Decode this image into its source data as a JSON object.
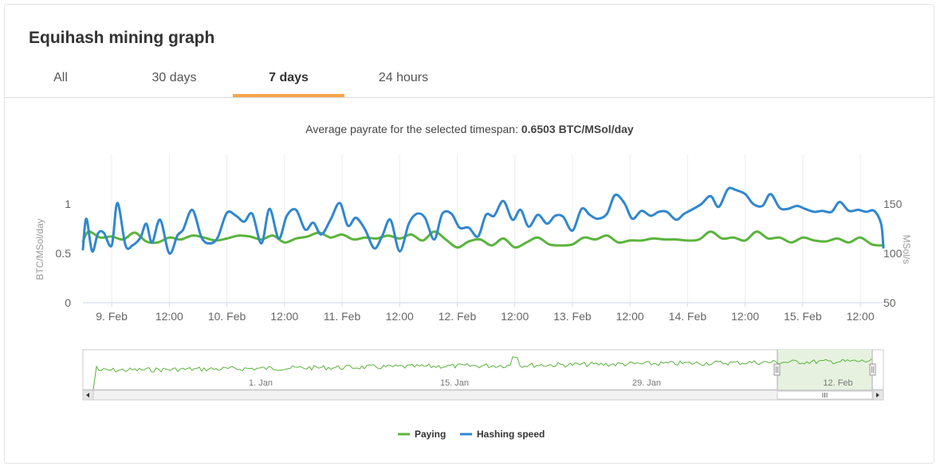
{
  "card": {
    "title": "Equihash mining graph",
    "tabs": [
      {
        "label": "All",
        "active": false
      },
      {
        "label": "30 days",
        "active": false
      },
      {
        "label": "7 days",
        "active": true
      },
      {
        "label": "24 hours",
        "active": false
      }
    ]
  },
  "chart_data": {
    "type": "line",
    "subtitle_prefix": "Average payrate for the selected timespan: ",
    "subtitle_value": "0.6503 BTC/MSol/day",
    "title": "",
    "x_tick_labels": [
      "9. Feb",
      "12:00",
      "10. Feb",
      "12:00",
      "11. Feb",
      "12:00",
      "12. Feb",
      "12:00",
      "13. Feb",
      "12:00",
      "14. Feb",
      "12:00",
      "15. Feb",
      "12:00"
    ],
    "x_range_days": [
      8.75,
      15.7
    ],
    "y_left": {
      "label": "BTC/MSol/day",
      "ticks": [
        "0",
        "0.5",
        "1"
      ],
      "range": [
        0,
        1.5
      ]
    },
    "y_right": {
      "label": "MSol/s",
      "ticks": [
        "50",
        "100",
        "150"
      ],
      "range": [
        50,
        200
      ]
    },
    "grid": true,
    "legend_position": "bottom-center",
    "series": [
      {
        "name": "Paying",
        "color": "#5ab43c",
        "axis": "left",
        "x_days": [
          8.75,
          8.8,
          8.9,
          9.0,
          9.1,
          9.2,
          9.3,
          9.4,
          9.5,
          9.6,
          9.7,
          9.8,
          9.9,
          10.0,
          10.1,
          10.2,
          10.3,
          10.4,
          10.5,
          10.6,
          10.7,
          10.8,
          10.9,
          11.0,
          11.1,
          11.2,
          11.3,
          11.4,
          11.5,
          11.6,
          11.7,
          11.8,
          11.9,
          12.0,
          12.1,
          12.2,
          12.3,
          12.4,
          12.5,
          12.6,
          12.7,
          12.8,
          12.9,
          13.0,
          13.1,
          13.2,
          13.3,
          13.4,
          13.5,
          13.6,
          13.7,
          13.8,
          13.9,
          14.0,
          14.1,
          14.2,
          14.3,
          14.4,
          14.5,
          14.6,
          14.7,
          14.8,
          14.9,
          15.0,
          15.1,
          15.2,
          15.3,
          15.4,
          15.5,
          15.6,
          15.7
        ],
        "y": [
          0.62,
          0.72,
          0.66,
          0.67,
          0.64,
          0.71,
          0.62,
          0.61,
          0.66,
          0.64,
          0.68,
          0.66,
          0.63,
          0.65,
          0.68,
          0.67,
          0.64,
          0.68,
          0.61,
          0.65,
          0.67,
          0.71,
          0.66,
          0.69,
          0.64,
          0.66,
          0.65,
          0.68,
          0.65,
          0.69,
          0.63,
          0.72,
          0.64,
          0.56,
          0.62,
          0.64,
          0.58,
          0.65,
          0.56,
          0.61,
          0.66,
          0.59,
          0.58,
          0.59,
          0.66,
          0.64,
          0.68,
          0.61,
          0.63,
          0.63,
          0.65,
          0.64,
          0.64,
          0.63,
          0.64,
          0.72,
          0.65,
          0.66,
          0.63,
          0.72,
          0.65,
          0.66,
          0.61,
          0.66,
          0.63,
          0.62,
          0.65,
          0.61,
          0.66,
          0.59,
          0.58
        ]
      },
      {
        "name": "Hashing speed",
        "color": "#2f87d0",
        "axis": "right",
        "x_days": [
          8.75,
          8.78,
          8.83,
          8.88,
          8.93,
          9.0,
          9.05,
          9.12,
          9.18,
          9.25,
          9.3,
          9.35,
          9.42,
          9.5,
          9.57,
          9.62,
          9.7,
          9.78,
          9.85,
          9.92,
          10.0,
          10.08,
          10.15,
          10.22,
          10.3,
          10.37,
          10.45,
          10.52,
          10.6,
          10.68,
          10.75,
          10.82,
          10.9,
          10.98,
          11.05,
          11.12,
          11.2,
          11.28,
          11.35,
          11.42,
          11.5,
          11.58,
          11.65,
          11.72,
          11.8,
          11.87,
          11.95,
          12.02,
          12.1,
          12.18,
          12.25,
          12.32,
          12.4,
          12.48,
          12.55,
          12.62,
          12.7,
          12.78,
          12.85,
          12.92,
          13.0,
          13.08,
          13.15,
          13.22,
          13.3,
          13.37,
          13.45,
          13.52,
          13.6,
          13.68,
          13.75,
          13.82,
          13.9,
          13.97,
          14.05,
          14.12,
          14.2,
          14.27,
          14.35,
          14.42,
          14.5,
          14.57,
          14.65,
          14.72,
          14.8,
          14.87,
          14.95,
          15.02,
          15.1,
          15.17,
          15.25,
          15.32,
          15.4,
          15.48,
          15.55,
          15.62,
          15.68,
          15.7
        ],
        "y": [
          104,
          135,
          102,
          120,
          121,
          108,
          151,
          108,
          108,
          116,
          130,
          111,
          134,
          100,
          118,
          124,
          144,
          116,
          110,
          116,
          141,
          138,
          132,
          140,
          110,
          145,
          115,
          138,
          144,
          124,
          131,
          119,
          134,
          151,
          128,
          136,
          124,
          105,
          118,
          134,
          102,
          130,
          140,
          136,
          114,
          140,
          140,
          126,
          126,
          117,
          139,
          138,
          153,
          134,
          144,
          127,
          139,
          130,
          138,
          137,
          123,
          145,
          139,
          135,
          140,
          159,
          151,
          135,
          143,
          138,
          142,
          142,
          134,
          140,
          145,
          150,
          158,
          147,
          165,
          164,
          160,
          150,
          148,
          160,
          146,
          145,
          148,
          145,
          142,
          143,
          142,
          152,
          143,
          144,
          142,
          143,
          130,
          106
        ]
      }
    ],
    "navigator": {
      "tick_labels": [
        "1. Jan",
        "15. Jan",
        "29. Jan",
        "12. Feb"
      ]
    },
    "legend": [
      {
        "name": "Paying",
        "color": "#5ab43c"
      },
      {
        "name": "Hashing speed",
        "color": "#2f87d0"
      }
    ]
  }
}
